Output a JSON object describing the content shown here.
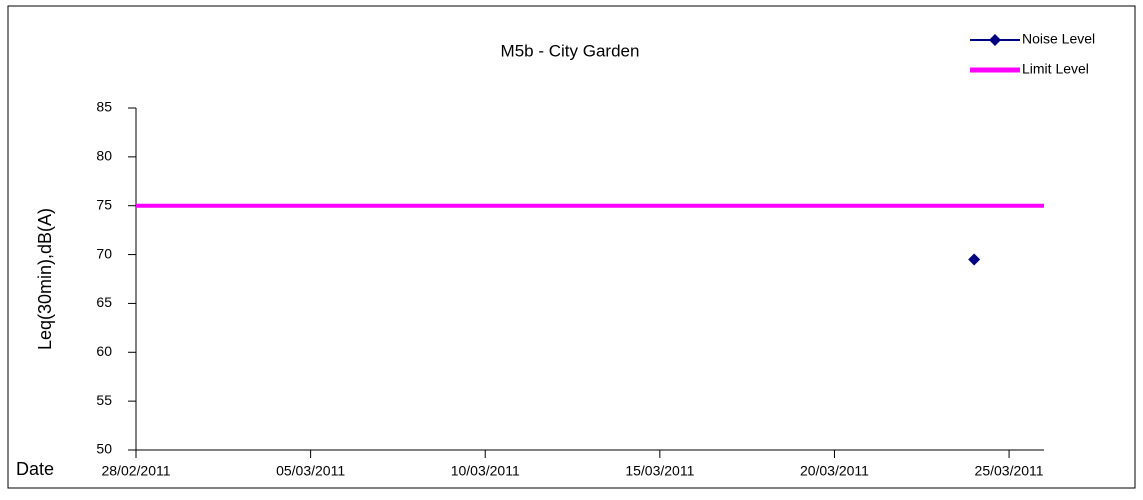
{
  "chart_data": {
    "type": "line",
    "title": "M5b - City Garden",
    "x_label": "Date",
    "y_label": "Leq(30min),dB(A)",
    "series": [
      {
        "name": "Noise Level",
        "color": "#000080",
        "marker": "diamond",
        "x": [
          "24/03/2011"
        ],
        "values": [
          69.5
        ]
      },
      {
        "name": "Limit Level",
        "color": "#ff00ff",
        "marker": "none",
        "x": [
          "28/02/2011",
          "26/03/2011"
        ],
        "values": [
          75,
          75
        ]
      }
    ],
    "xlim": [
      "28/02/2011",
      "26/03/2011"
    ],
    "xticks": [
      "28/02/2011",
      "05/03/2011",
      "10/03/2011",
      "15/03/2011",
      "20/03/2011",
      "25/03/2011"
    ],
    "ylim": [
      50,
      85
    ],
    "yticks": [
      50,
      55,
      60,
      65,
      70,
      75,
      80,
      85
    ],
    "grid": false,
    "legend": "top-right"
  }
}
